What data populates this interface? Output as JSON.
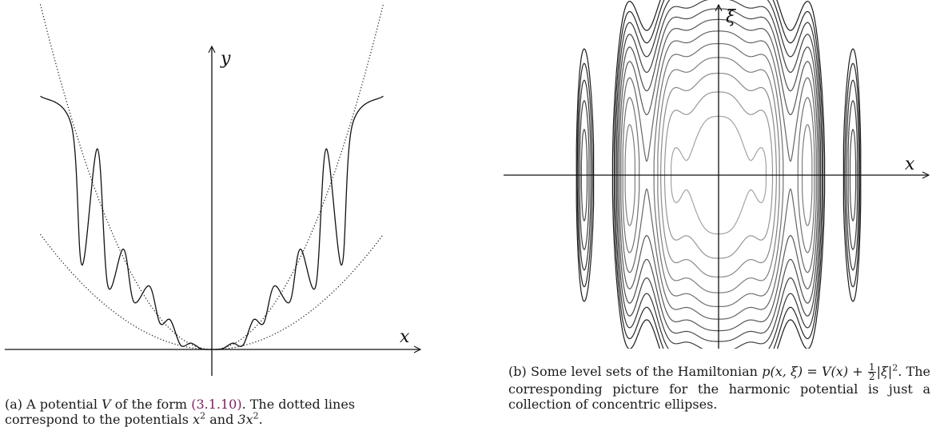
{
  "figure_a": {
    "axis_x": "x",
    "axis_y": "y",
    "caption": {
      "label": "(a)",
      "t1": "A potential",
      "V": "V",
      "t2": "of the form",
      "ref": "(3.1.10)",
      "t3": ". The dotted lines correspond to the potentials",
      "pot1": "x",
      "exp1": "2",
      "and": "and",
      "pot2": "3x",
      "exp2": "2",
      "end": "."
    }
  },
  "figure_b": {
    "axis_x": "x",
    "axis_y": "ξ",
    "caption": {
      "label": "(b)",
      "t1": "Some level sets of the Hamiltonian",
      "p": "p(x, ξ) =",
      "v": "V(x) +",
      "frac_num": "1",
      "frac_den": "2",
      "abs": "|ξ|",
      "exp": "2",
      "t2": ". The corresponding picture for the harmonic potential is just a collection of concentric ellipses."
    }
  },
  "chart_data": [
    {
      "type": "line",
      "title": "",
      "xlabel": "x",
      "ylabel": "y",
      "series": [
        {
          "name": "V(x)",
          "style": "solid",
          "color": "#111111",
          "x": [
            -3.3,
            -2.7,
            -2.5,
            -2.2,
            -2.0,
            -1.7,
            -1.5,
            -1.2,
            -1.0,
            -0.8,
            -0.6,
            -0.4,
            -0.2,
            0.0,
            0.2,
            0.4,
            0.6,
            0.8,
            1.0,
            1.2,
            1.5,
            1.7,
            2.0,
            2.2,
            2.5,
            2.7,
            3.3
          ],
          "y": [
            24.0,
            21.2,
            8.0,
            19.0,
            6.0,
            9.5,
            4.5,
            6.0,
            2.5,
            2.8,
            0.4,
            0.6,
            0.05,
            0.0,
            0.05,
            0.6,
            0.4,
            2.8,
            2.5,
            6.0,
            4.5,
            9.5,
            6.0,
            19.0,
            8.0,
            21.2,
            24.0
          ]
        },
        {
          "name": "x^2",
          "style": "dotted",
          "color": "#111111",
          "x": [
            -3.3,
            -2.0,
            -1.0,
            0.0,
            1.0,
            2.0,
            3.3
          ],
          "y": [
            10.9,
            4.0,
            1.0,
            0.0,
            1.0,
            4.0,
            10.9
          ]
        },
        {
          "name": "3x^2",
          "style": "dotted",
          "color": "#111111",
          "x": [
            -3.3,
            -2.0,
            -1.0,
            0.0,
            1.0,
            2.0,
            3.3
          ],
          "y": [
            32.7,
            12.0,
            3.0,
            0.0,
            3.0,
            12.0,
            32.7
          ]
        }
      ]
    },
    {
      "type": "line",
      "title": "",
      "xlabel": "x",
      "ylabel": "ξ",
      "series": [
        {
          "name": "level sets",
          "style": "solid",
          "color": "#222222",
          "levels": [
            1,
            2,
            3,
            4,
            5,
            6,
            7,
            8,
            9,
            10,
            11,
            12
          ]
        }
      ]
    }
  ]
}
